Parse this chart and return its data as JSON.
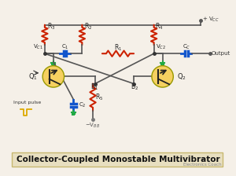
{
  "bg_color": "#f5f0e8",
  "title_text": "Collector-Coupled Monostable Multivibrator",
  "title_box_color": "#e8dfc0",
  "title_border_color": "#c8b870",
  "watermark": "Electronics Coach",
  "resistor_color": "#cc2200",
  "capacitor_color": "#1155cc",
  "transistor_fill": "#f5d060",
  "ground_color": "#22aa44",
  "signal_color": "#ddaa00",
  "dot_color": "#333333",
  "label_color": "#222222",
  "wire_color": "#555555"
}
